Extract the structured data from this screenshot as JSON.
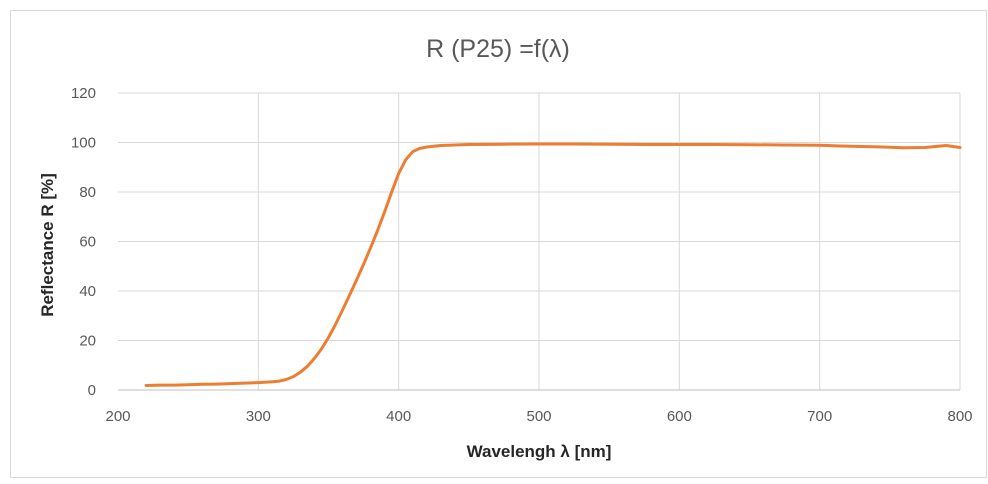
{
  "chart_data": {
    "type": "line",
    "title": "R (P25) =f(λ)",
    "xlabel": "Wavelengh λ [nm]",
    "ylabel": "Reflectance R [%]",
    "xlim": [
      200,
      800
    ],
    "ylim": [
      0,
      120
    ],
    "x_ticks": [
      "200",
      "300",
      "400",
      "500",
      "600",
      "700",
      "800"
    ],
    "y_ticks": [
      "0",
      "20",
      "40",
      "60",
      "80",
      "100",
      "120"
    ],
    "grid": true,
    "legend": "none",
    "series": [
      {
        "color": "#ED7D31",
        "points": [
          [
            220,
            1.8
          ],
          [
            230,
            2.0
          ],
          [
            240,
            2.0
          ],
          [
            250,
            2.1
          ],
          [
            260,
            2.3
          ],
          [
            270,
            2.4
          ],
          [
            280,
            2.6
          ],
          [
            290,
            2.8
          ],
          [
            300,
            3.0
          ],
          [
            310,
            3.3
          ],
          [
            315,
            3.6
          ],
          [
            320,
            4.3
          ],
          [
            325,
            5.4
          ],
          [
            330,
            7.2
          ],
          [
            335,
            9.6
          ],
          [
            340,
            12.8
          ],
          [
            345,
            16.6
          ],
          [
            350,
            21.2
          ],
          [
            355,
            26.5
          ],
          [
            360,
            32.3
          ],
          [
            365,
            38.4
          ],
          [
            370,
            44.5
          ],
          [
            375,
            50.8
          ],
          [
            380,
            57.5
          ],
          [
            385,
            64.5
          ],
          [
            390,
            72.0
          ],
          [
            395,
            80.0
          ],
          [
            400,
            87.5
          ],
          [
            405,
            93.0
          ],
          [
            410,
            96.3
          ],
          [
            415,
            97.6
          ],
          [
            420,
            98.2
          ],
          [
            430,
            98.8
          ],
          [
            440,
            99.0
          ],
          [
            450,
            99.2
          ],
          [
            475,
            99.3
          ],
          [
            500,
            99.4
          ],
          [
            525,
            99.4
          ],
          [
            550,
            99.3
          ],
          [
            575,
            99.2
          ],
          [
            600,
            99.2
          ],
          [
            625,
            99.2
          ],
          [
            650,
            99.1
          ],
          [
            675,
            99.0
          ],
          [
            700,
            98.9
          ],
          [
            715,
            98.6
          ],
          [
            730,
            98.4
          ],
          [
            745,
            98.2
          ],
          [
            760,
            97.9
          ],
          [
            775,
            98.0
          ],
          [
            790,
            98.8
          ],
          [
            800,
            98.0
          ]
        ]
      }
    ]
  }
}
